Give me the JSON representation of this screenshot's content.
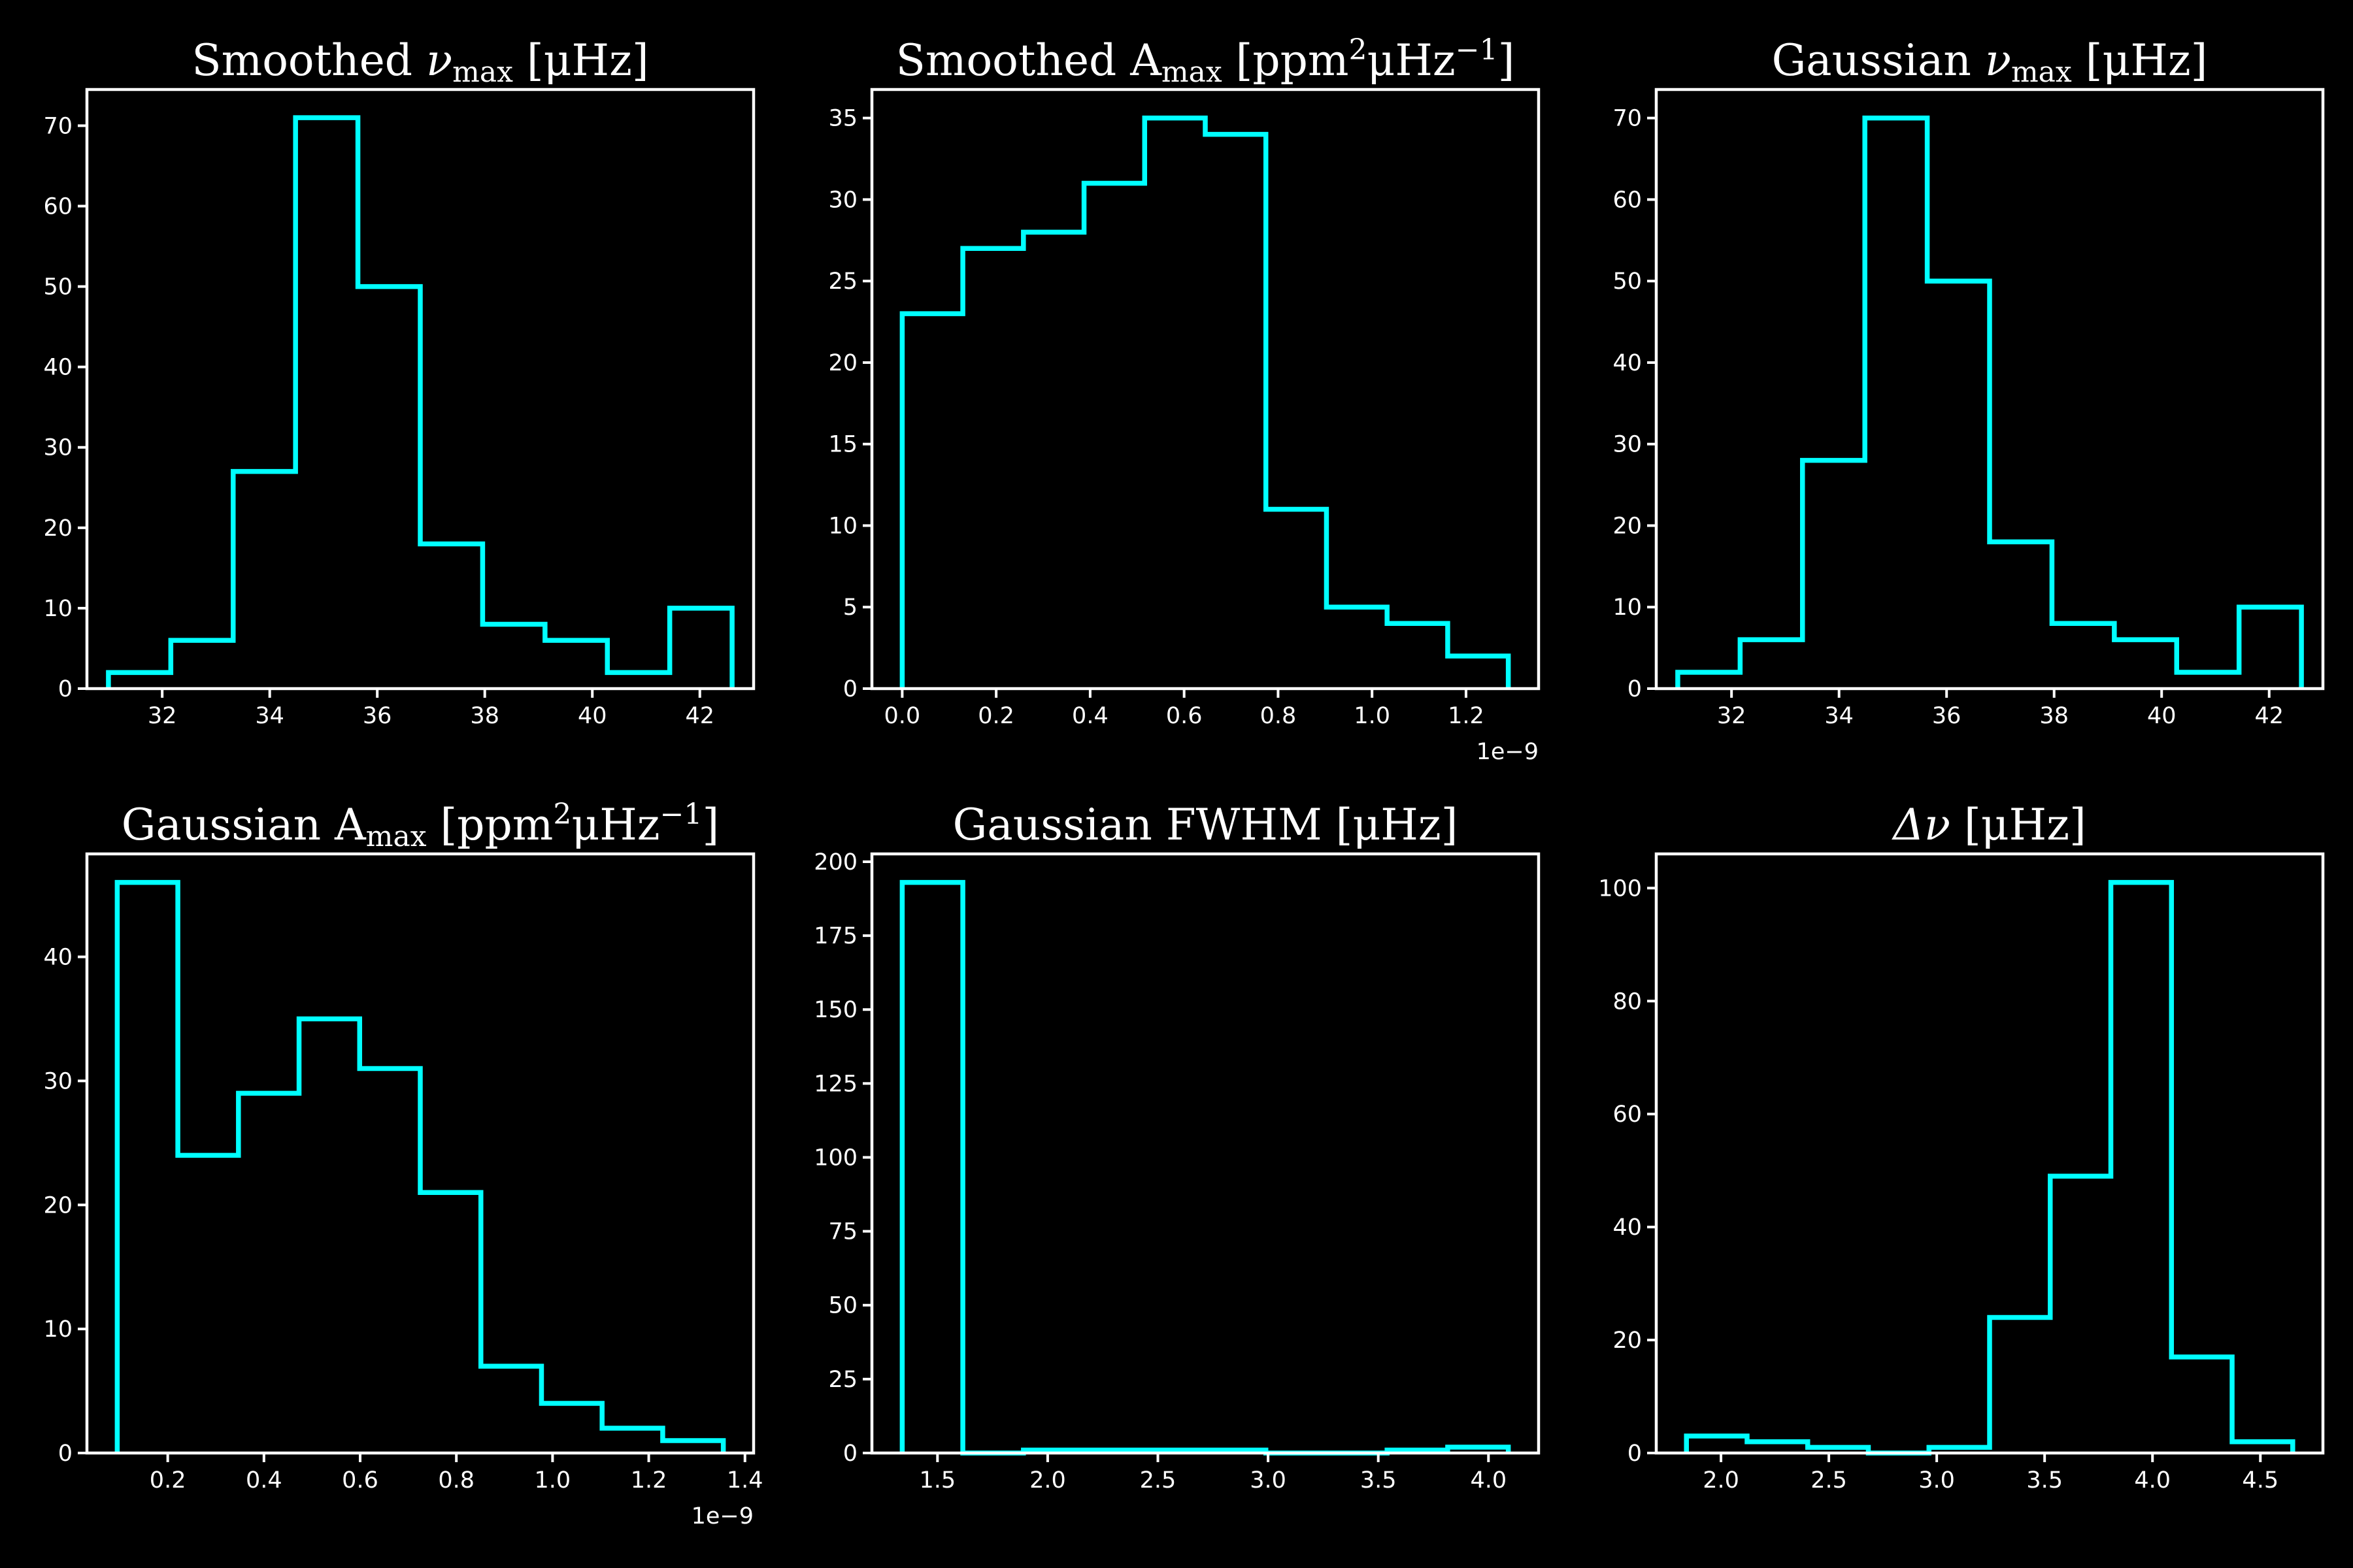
{
  "figure": {
    "background": "#000000",
    "line_color": "#00ffff",
    "frame_color": "#ffffff"
  },
  "chart_data": [
    {
      "type": "histogram",
      "title_parts": [
        [
          "",
          "Smoothed "
        ],
        [
          "sym",
          "ν"
        ],
        [
          "sub",
          "max"
        ],
        [
          "",
          " [μHz]"
        ]
      ],
      "edges": [
        31.0,
        32.16,
        33.32,
        34.48,
        35.64,
        36.8,
        37.96,
        39.12,
        40.28,
        41.44,
        42.6
      ],
      "counts": [
        2,
        6,
        27,
        71,
        50,
        18,
        8,
        6,
        2,
        10
      ],
      "xlim": [
        30.6,
        43.0
      ],
      "ylim": [
        0,
        74.5
      ],
      "xticks": [
        32,
        34,
        36,
        38,
        40,
        42
      ],
      "xtick_labels": [
        "32",
        "34",
        "36",
        "38",
        "40",
        "42"
      ],
      "yticks": [
        0,
        10,
        20,
        30,
        40,
        50,
        60,
        70
      ],
      "ytick_labels": [
        "0",
        "10",
        "20",
        "30",
        "40",
        "50",
        "60",
        "70"
      ],
      "x_offset_label": ""
    },
    {
      "type": "histogram",
      "title_parts": [
        [
          "",
          "Smoothed A"
        ],
        [
          "sub",
          "max"
        ],
        [
          "",
          " [ppm"
        ],
        [
          "sup",
          "2"
        ],
        [
          "",
          "μHz"
        ],
        [
          "sup",
          "−1"
        ],
        [
          "",
          "]"
        ]
      ],
      "edges": [
        0.0,
        0.129,
        0.258,
        0.387,
        0.516,
        0.645,
        0.774,
        0.903,
        1.032,
        1.161,
        1.29
      ],
      "counts": [
        23,
        27,
        28,
        31,
        35,
        34,
        11,
        5,
        4,
        2
      ],
      "xlim": [
        -0.0645,
        1.3545
      ],
      "ylim": [
        0,
        36.75
      ],
      "xticks": [
        0.0,
        0.2,
        0.4,
        0.6,
        0.8,
        1.0,
        1.2
      ],
      "xtick_labels": [
        "0.0",
        "0.2",
        "0.4",
        "0.6",
        "0.8",
        "1.0",
        "1.2"
      ],
      "yticks": [
        0,
        5,
        10,
        15,
        20,
        25,
        30,
        35
      ],
      "ytick_labels": [
        "0",
        "5",
        "10",
        "15",
        "20",
        "25",
        "30",
        "35"
      ],
      "x_offset_label": "1e−9"
    },
    {
      "type": "histogram",
      "title_parts": [
        [
          "",
          "Gaussian "
        ],
        [
          "sym",
          "ν"
        ],
        [
          "sub",
          "max"
        ],
        [
          "",
          " [μHz]"
        ]
      ],
      "edges": [
        31.0,
        32.16,
        33.32,
        34.48,
        35.64,
        36.8,
        37.96,
        39.12,
        40.28,
        41.44,
        42.6
      ],
      "counts": [
        2,
        6,
        28,
        70,
        50,
        18,
        8,
        6,
        2,
        10
      ],
      "xlim": [
        30.6,
        43.0
      ],
      "ylim": [
        0,
        73.5
      ],
      "xticks": [
        32,
        34,
        36,
        38,
        40,
        42
      ],
      "xtick_labels": [
        "32",
        "34",
        "36",
        "38",
        "40",
        "42"
      ],
      "yticks": [
        0,
        10,
        20,
        30,
        40,
        50,
        60,
        70
      ],
      "ytick_labels": [
        "0",
        "10",
        "20",
        "30",
        "40",
        "50",
        "60",
        "70"
      ],
      "x_offset_label": ""
    },
    {
      "type": "histogram",
      "title_parts": [
        [
          "",
          "Gaussian A"
        ],
        [
          "sub",
          "max"
        ],
        [
          "",
          " [ppm"
        ],
        [
          "sup",
          "2"
        ],
        [
          "",
          "μHz"
        ],
        [
          "sup",
          "−1"
        ],
        [
          "",
          "]"
        ]
      ],
      "edges": [
        0.095,
        0.221,
        0.347,
        0.473,
        0.599,
        0.725,
        0.851,
        0.977,
        1.103,
        1.229,
        1.355
      ],
      "counts": [
        46,
        24,
        29,
        35,
        31,
        21,
        7,
        4,
        2,
        1
      ],
      "xlim": [
        0.032,
        1.418
      ],
      "ylim": [
        0,
        48.3
      ],
      "xticks": [
        0.2,
        0.4,
        0.6,
        0.8,
        1.0,
        1.2,
        1.4
      ],
      "xtick_labels": [
        "0.2",
        "0.4",
        "0.6",
        "0.8",
        "1.0",
        "1.2",
        "1.4"
      ],
      "yticks": [
        0,
        10,
        20,
        30,
        40
      ],
      "ytick_labels": [
        "0",
        "10",
        "20",
        "30",
        "40"
      ],
      "x_offset_label": "1e−9"
    },
    {
      "type": "histogram",
      "title_parts": [
        [
          "",
          "Gaussian FWHM [μHz]"
        ]
      ],
      "edges": [
        1.34,
        1.615,
        1.89,
        2.165,
        2.44,
        2.715,
        2.99,
        3.265,
        3.54,
        3.815,
        4.09
      ],
      "counts": [
        193,
        0,
        1,
        1,
        1,
        1,
        0,
        0,
        1,
        2
      ],
      "xlim": [
        1.2025,
        4.2275
      ],
      "ylim": [
        0,
        202.65
      ],
      "xticks": [
        1.5,
        2.0,
        2.5,
        3.0,
        3.5,
        4.0
      ],
      "xtick_labels": [
        "1.5",
        "2.0",
        "2.5",
        "3.0",
        "3.5",
        "4.0"
      ],
      "yticks": [
        0,
        25,
        50,
        75,
        100,
        125,
        150,
        175,
        200
      ],
      "ytick_labels": [
        "0",
        "25",
        "50",
        "75",
        "100",
        "125",
        "150",
        "175",
        "200"
      ],
      "x_offset_label": ""
    },
    {
      "type": "histogram",
      "title_parts": [
        [
          "sym",
          "Δν"
        ],
        [
          "",
          " [μHz]"
        ]
      ],
      "edges": [
        1.84,
        2.121,
        2.402,
        2.683,
        2.964,
        3.245,
        3.526,
        3.807,
        4.088,
        4.369,
        4.65
      ],
      "counts": [
        3,
        2,
        1,
        0,
        1,
        24,
        49,
        101,
        17,
        2
      ],
      "xlim": [
        1.7,
        4.79
      ],
      "ylim": [
        0,
        106.05
      ],
      "xticks": [
        2.0,
        2.5,
        3.0,
        3.5,
        4.0,
        4.5
      ],
      "xtick_labels": [
        "2.0",
        "2.5",
        "3.0",
        "3.5",
        "4.0",
        "4.5"
      ],
      "yticks": [
        0,
        20,
        40,
        60,
        80,
        100
      ],
      "ytick_labels": [
        "0",
        "20",
        "40",
        "60",
        "80",
        "100"
      ],
      "x_offset_label": ""
    }
  ]
}
